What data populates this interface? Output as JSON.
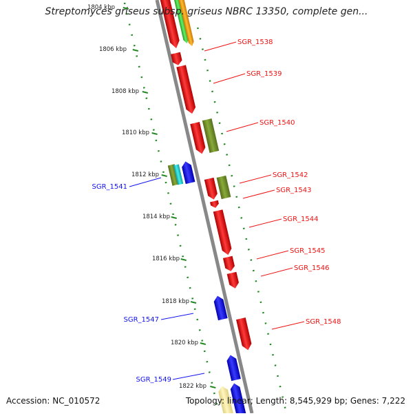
{
  "title": "Streptomyces griseus subsp. griseus NBRC 13350, complete gen...",
  "accession": "Accession: NC_010572",
  "summary": "Topology: linear; Length: 8,545,929 bp; Genes: 7,222",
  "colors": {
    "forward": "#ee1111",
    "reverse": "#1111ee",
    "olive": "#6b8e23",
    "cyan": "#22cccc",
    "green": "#44cc44",
    "orange": "#ff9900",
    "yellow": "#f5e9a0",
    "backbone": "#888888",
    "scale": "#228822"
  },
  "scale_labels": [
    "1804 kbp",
    "1806 kbp",
    "1808 kbp",
    "1810 kbp",
    "1812 kbp",
    "1814 kbp",
    "1816 kbp",
    "1818 kbp",
    "1820 kbp",
    "1822 kbp"
  ],
  "gene_labels": [
    {
      "name": "SGR_1538",
      "strand": "forward"
    },
    {
      "name": "SGR_1539",
      "strand": "forward"
    },
    {
      "name": "SGR_1540",
      "strand": "forward"
    },
    {
      "name": "SGR_1541",
      "strand": "reverse"
    },
    {
      "name": "SGR_1542",
      "strand": "forward"
    },
    {
      "name": "SGR_1543",
      "strand": "forward"
    },
    {
      "name": "SGR_1544",
      "strand": "forward"
    },
    {
      "name": "SGR_1545",
      "strand": "forward"
    },
    {
      "name": "SGR_1546",
      "strand": "forward"
    },
    {
      "name": "SGR_1547",
      "strand": "reverse"
    },
    {
      "name": "SGR_1548",
      "strand": "forward"
    },
    {
      "name": "SGR_1549",
      "strand": "reverse"
    }
  ]
}
